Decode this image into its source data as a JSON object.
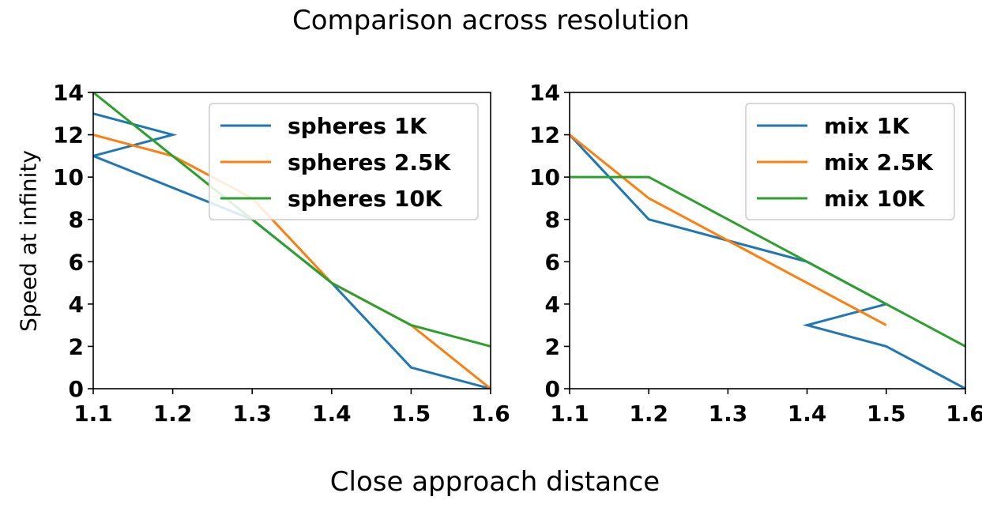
{
  "title": "Comparison across resolution",
  "xlabel": "Close approach distance",
  "ylabel": "Speed at infinity",
  "colors": {
    "blue": "#1f77b4",
    "orange": "#ff7f0e",
    "green": "#2ca02c"
  },
  "chart_data": [
    {
      "type": "line",
      "xlim": [
        1.1,
        1.6
      ],
      "ylim": [
        0,
        14
      ],
      "xticks": [
        1.1,
        1.2,
        1.3,
        1.4,
        1.5,
        1.6
      ],
      "yticks": [
        0,
        2,
        4,
        6,
        8,
        10,
        12,
        14
      ],
      "legend_position": "top-right",
      "series": [
        {
          "name": "spheres 1K",
          "color": "#1f77b4",
          "points": [
            [
              1.1,
              13
            ],
            [
              1.2,
              12
            ],
            [
              1.1,
              11
            ],
            [
              1.3,
              8
            ],
            [
              1.4,
              5
            ],
            [
              1.5,
              1
            ],
            [
              1.6,
              0
            ]
          ]
        },
        {
          "name": "spheres 2.5K",
          "color": "#ff7f0e",
          "points": [
            [
              1.1,
              12
            ],
            [
              1.2,
              11
            ],
            [
              1.3,
              9
            ],
            [
              1.4,
              5
            ],
            [
              1.5,
              3
            ],
            [
              1.6,
              0
            ]
          ]
        },
        {
          "name": "spheres 10K",
          "color": "#2ca02c",
          "points": [
            [
              1.1,
              14
            ],
            [
              1.2,
              11
            ],
            [
              1.3,
              8
            ],
            [
              1.4,
              5
            ],
            [
              1.5,
              3
            ],
            [
              1.6,
              2
            ]
          ]
        }
      ]
    },
    {
      "type": "line",
      "xlim": [
        1.1,
        1.6
      ],
      "ylim": [
        0,
        14
      ],
      "xticks": [
        1.1,
        1.2,
        1.3,
        1.4,
        1.5,
        1.6
      ],
      "yticks": [
        0,
        2,
        4,
        6,
        8,
        10,
        12,
        14
      ],
      "legend_position": "top-right",
      "series": [
        {
          "name": "mix 1K",
          "color": "#1f77b4",
          "points": [
            [
              1.1,
              12
            ],
            [
              1.2,
              8
            ],
            [
              1.3,
              7
            ],
            [
              1.4,
              6
            ],
            [
              1.5,
              4
            ],
            [
              1.4,
              3
            ],
            [
              1.5,
              2
            ],
            [
              1.6,
              0
            ]
          ]
        },
        {
          "name": "mix 2.5K",
          "color": "#ff7f0e",
          "points": [
            [
              1.1,
              12
            ],
            [
              1.2,
              9
            ],
            [
              1.3,
              7
            ],
            [
              1.4,
              5
            ],
            [
              1.5,
              3
            ]
          ]
        },
        {
          "name": "mix 10K",
          "color": "#2ca02c",
          "points": [
            [
              1.1,
              10
            ],
            [
              1.2,
              10
            ],
            [
              1.3,
              8
            ],
            [
              1.4,
              6
            ],
            [
              1.5,
              4
            ],
            [
              1.6,
              2
            ]
          ]
        }
      ]
    }
  ]
}
